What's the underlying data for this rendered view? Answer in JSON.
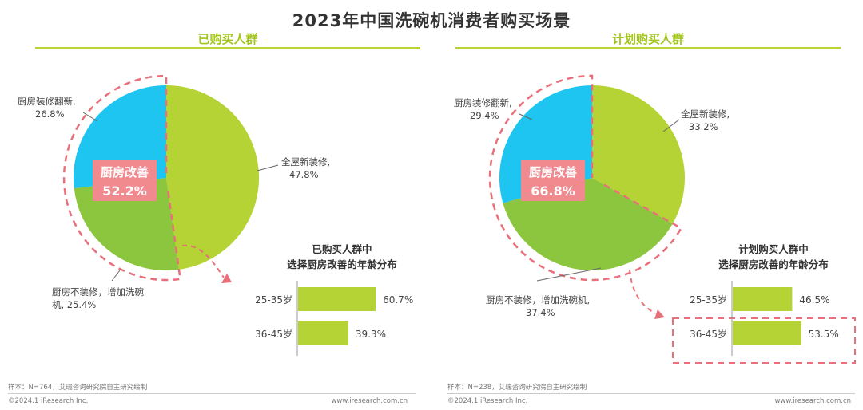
{
  "title": "2023年中国洗碗机消费者购买场景",
  "colors": {
    "blue": "#1dc5f0",
    "green_dark": "#8cc63f",
    "green_light": "#b5d334",
    "pink": "#e9707a",
    "badge_bg": "#f08a8f"
  },
  "left": {
    "panel_title": "已购买人群",
    "badge_label": "厨房改善",
    "badge_value": "52.2%",
    "slice_labels": [
      {
        "name": "厨房装修翻新,",
        "value": "26.8%"
      },
      {
        "name": "全屋新装修,",
        "value": "47.8%"
      },
      {
        "name": "厨房不装修，增加洗碗",
        "value": "机, 25.4%"
      }
    ],
    "bar_title_1": "已购买人群中",
    "bar_title_2": "选择厨房改善的年龄分布",
    "footnote": "样本：N=764，艾瑞咨询研究院自主研究绘制",
    "copyright": "©2024.1 iResearch Inc.",
    "url": "www.iresearch.com.cn"
  },
  "right": {
    "panel_title": "计划购买人群",
    "badge_label": "厨房改善",
    "badge_value": "66.8%",
    "slice_labels": [
      {
        "name": "厨房装修翻新,",
        "value": "29.4%"
      },
      {
        "name": "全屋新装修,",
        "value": "33.2%"
      },
      {
        "name": "厨房不装修，增加洗碗机,",
        "value": "37.4%"
      }
    ],
    "bar_title_1": "计划购买人群中",
    "bar_title_2": "选择厨房改善的年龄分布",
    "footnote": "样本：N=238，艾瑞咨询研究院自主研究绘制",
    "copyright": "©2024.1 iResearch Inc.",
    "url": "www.iresearch.com.cn"
  },
  "chart_data": [
    {
      "type": "pie",
      "title": "已购买人群",
      "categories": [
        "全屋新装修",
        "厨房不装修，增加洗碗机",
        "厨房装修翻新"
      ],
      "values": [
        47.8,
        25.4,
        26.8
      ],
      "highlight": {
        "label": "厨房改善",
        "value": 52.2
      }
    },
    {
      "type": "bar",
      "title": "已购买人群中选择厨房改善的年龄分布",
      "categories": [
        "25-35岁",
        "36-45岁"
      ],
      "values": [
        60.7,
        39.3
      ],
      "value_labels": [
        "60.7%",
        "39.3%"
      ],
      "xlim": [
        0,
        100
      ]
    },
    {
      "type": "pie",
      "title": "计划购买人群",
      "categories": [
        "全屋新装修",
        "厨房不装修，增加洗碗机",
        "厨房装修翻新"
      ],
      "values": [
        33.2,
        37.4,
        29.4
      ],
      "highlight": {
        "label": "厨房改善",
        "value": 66.8
      }
    },
    {
      "type": "bar",
      "title": "计划购买人群中选择厨房改善的年龄分布",
      "categories": [
        "25-35岁",
        "36-45岁"
      ],
      "values": [
        46.5,
        53.5
      ],
      "value_labels": [
        "46.5%",
        "53.5%"
      ],
      "xlim": [
        0,
        100
      ],
      "highlighted_category": "36-45岁"
    }
  ]
}
